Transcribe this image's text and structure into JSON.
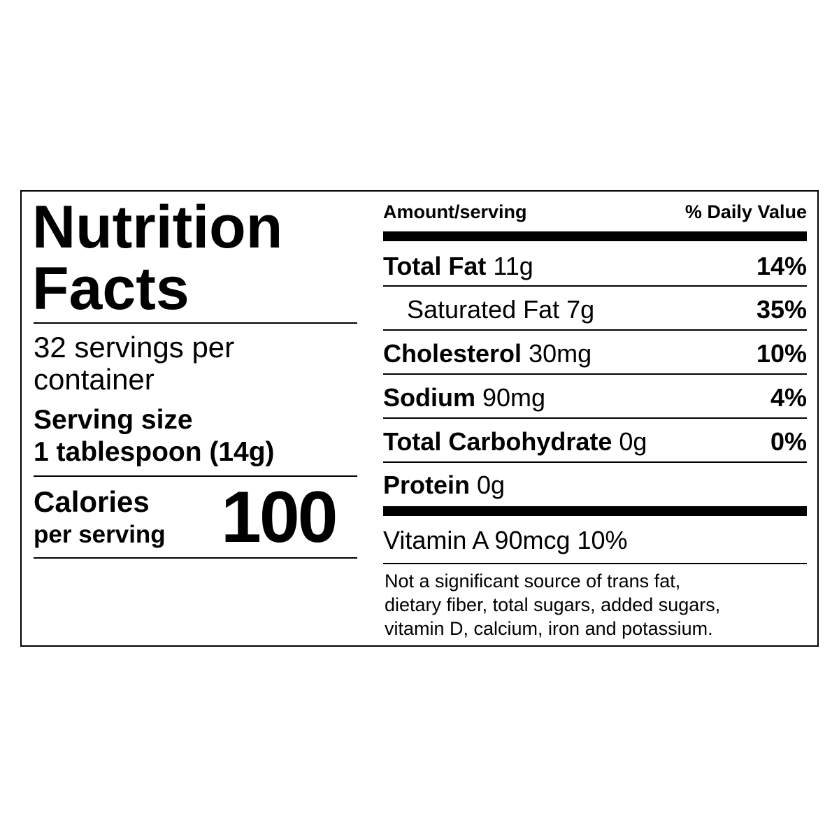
{
  "title_line1": "Nutrition",
  "title_line2": "Facts",
  "servings_line1": "32 servings per",
  "servings_line2": "container",
  "serving_size_label": "Serving size",
  "serving_size_value": "1 tablespoon (14g)",
  "calories_label_line1": "Calories",
  "calories_label_line2": "per serving",
  "calories_value": "100",
  "header_amount": "Amount/serving",
  "header_dv": "% Daily Value",
  "nutrients": [
    {
      "name": "Total Fat",
      "amount": "11g",
      "dv": "14%"
    },
    {
      "name": "Saturated Fat",
      "amount": "7g",
      "dv": "35%"
    },
    {
      "name": "Cholesterol",
      "amount": "30mg",
      "dv": "10%"
    },
    {
      "name": "Sodium",
      "amount": "90mg",
      "dv": "4%"
    },
    {
      "name": "Total Carbohydrate",
      "amount": "0g",
      "dv": "0%"
    },
    {
      "name": "Protein",
      "amount": "0g",
      "dv": ""
    }
  ],
  "vitamin": "Vitamin A 90mcg 10%",
  "footnote_line1": "Not a significant source of trans fat,",
  "footnote_line2": "dietary fiber, total sugars, added sugars,",
  "footnote_line3": "vitamin D, calcium, iron and potassium."
}
